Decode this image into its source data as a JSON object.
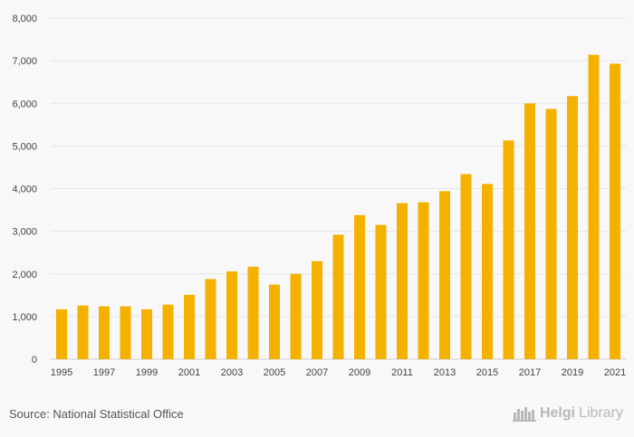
{
  "chart_data": {
    "type": "bar",
    "categories": [
      "1995",
      "1996",
      "1997",
      "1998",
      "1999",
      "2000",
      "2001",
      "2002",
      "2003",
      "2004",
      "2005",
      "2006",
      "2007",
      "2008",
      "2009",
      "2010",
      "2011",
      "2012",
      "2013",
      "2014",
      "2015",
      "2016",
      "2017",
      "2018",
      "2019",
      "2020",
      "2021"
    ],
    "values": [
      1170,
      1260,
      1240,
      1240,
      1170,
      1280,
      1510,
      1880,
      2060,
      2170,
      1750,
      2000,
      2300,
      2920,
      3380,
      3150,
      3660,
      3680,
      3940,
      4340,
      4110,
      5130,
      6000,
      5870,
      6170,
      7140,
      6930
    ],
    "x_tick_labels": [
      "1995",
      "1997",
      "1999",
      "2001",
      "2003",
      "2005",
      "2007",
      "2009",
      "2011",
      "2013",
      "2015",
      "2017",
      "2019",
      "2021"
    ],
    "y_tick_labels": [
      "0",
      "1,000",
      "2,000",
      "3,000",
      "4,000",
      "5,000",
      "6,000",
      "7,000",
      "8,000"
    ],
    "y_ticks": [
      0,
      1000,
      2000,
      3000,
      4000,
      5000,
      6000,
      7000,
      8000
    ],
    "ylim": [
      0,
      8000
    ],
    "title": "",
    "xlabel": "",
    "ylabel": "",
    "grid": true,
    "legend": "none",
    "bar_color": "#f5b100"
  },
  "footer": {
    "source": "Source: National Statistical Office",
    "logo_main": "Helgi",
    "logo_sub": "Library"
  }
}
